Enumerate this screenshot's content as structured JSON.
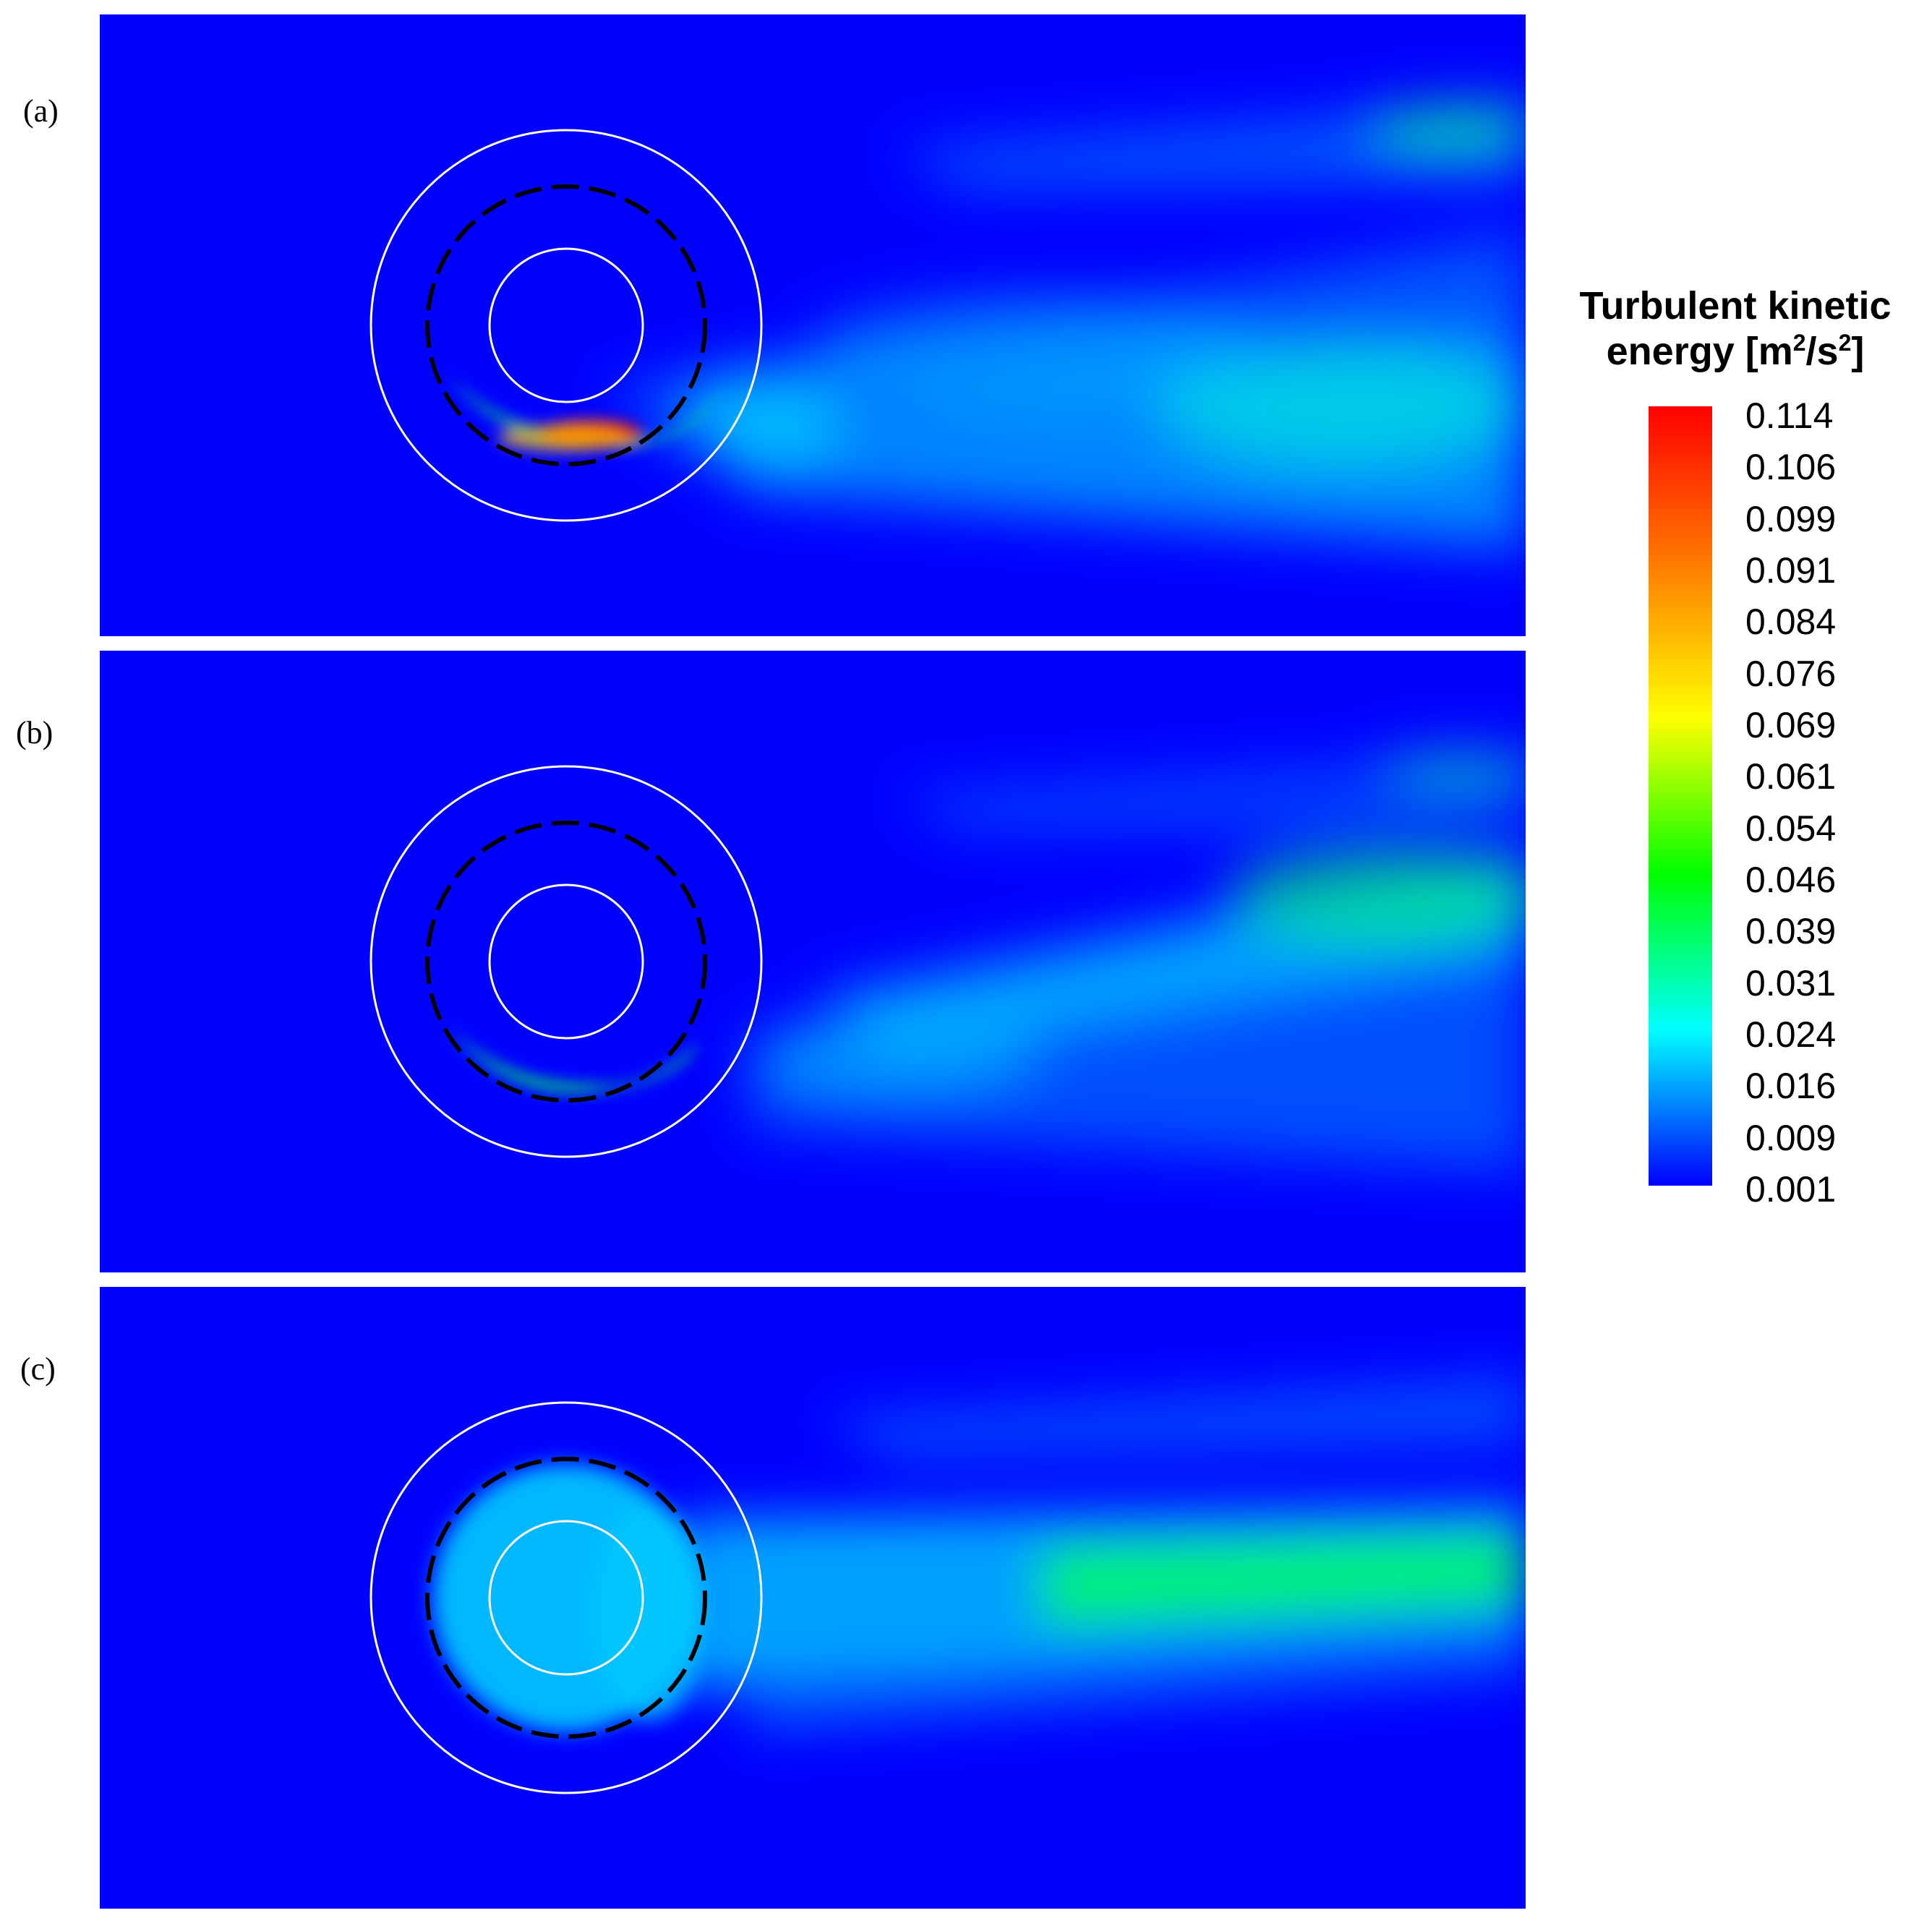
{
  "panels": [
    {
      "label": "(a)"
    },
    {
      "label": "(b)"
    },
    {
      "label": "(c)"
    }
  ],
  "legend": {
    "title_line1": "Turbulent  kinetic",
    "title_line2_prefix": "energy [m",
    "title_sup1": "2",
    "title_mid": "/s",
    "title_sup2": "2",
    "title_suffix": "]",
    "ticks": [
      "0.114",
      "0.106",
      "0.099",
      "0.091",
      "0.084",
      "0.076",
      "0.069",
      "0.061",
      "0.054",
      "0.046",
      "0.039",
      "0.031",
      "0.024",
      "0.016",
      "0.009",
      "0.001"
    ],
    "colormap": [
      "#ff0000",
      "#ff7a00",
      "#ffff00",
      "#00ff00",
      "#00ffff",
      "#0000ff"
    ]
  },
  "colors": {
    "background_field": "#0000ff",
    "ring_outline": "#ffffff",
    "dashed_ring": "#000000"
  }
}
